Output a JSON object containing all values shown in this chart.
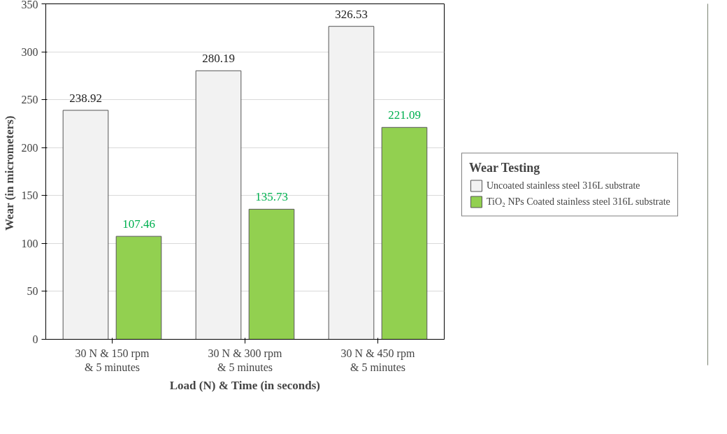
{
  "chart_data": {
    "type": "bar",
    "xlabel": "Load (N) & Time (in seconds)",
    "ylabel": "Wear (in  micrometers)",
    "legend_title": "Wear Testing",
    "categories": [
      "30 N & 150 rpm & 5 minutes",
      "30 N & 300 rpm & 5 minutes",
      "30 N & 450 rpm & 5 minutes"
    ],
    "series": [
      {
        "name": "Uncoated stainless steel 316L substrate",
        "color": "#f2f2f2",
        "values": [
          238.92,
          280.19,
          326.53
        ]
      },
      {
        "name": "TiO₂ NPs Coated stainless steel 316L substrate",
        "color": "#92d050",
        "values": [
          107.46,
          135.73,
          221.09
        ]
      }
    ],
    "ylim": [
      0,
      350
    ],
    "yticks": [
      0,
      50,
      100,
      150,
      200,
      250,
      300,
      350
    ],
    "grid": "y",
    "legend": "right",
    "data_labels": true
  }
}
